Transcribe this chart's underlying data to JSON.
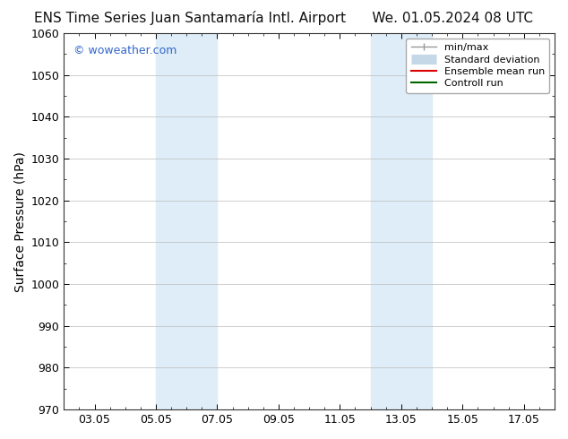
{
  "title_left": "ENS Time Series Juan Santamaría Intl. Airport",
  "title_right": "We. 01.05.2024 08 UTC",
  "ylabel": "Surface Pressure (hPa)",
  "ylim": [
    970,
    1060
  ],
  "yticks": [
    970,
    980,
    990,
    1000,
    1010,
    1020,
    1030,
    1040,
    1050,
    1060
  ],
  "xtick_labels": [
    "03.05",
    "05.05",
    "07.05",
    "09.05",
    "11.05",
    "13.05",
    "15.05",
    "17.05"
  ],
  "xtick_positions": [
    2,
    4,
    6,
    8,
    10,
    12,
    14,
    16
  ],
  "xlim": [
    1,
    17
  ],
  "watermark": "© woweather.com",
  "watermark_color": "#3366cc",
  "bg_color": "#ffffff",
  "plot_bg_color": "#ffffff",
  "shaded_bands": [
    {
      "x_start": 4.0,
      "x_end": 6.0,
      "color": "#deedf8"
    },
    {
      "x_start": 11.0,
      "x_end": 13.0,
      "color": "#deedf8"
    }
  ],
  "grid_color": "#bbbbbb",
  "tick_label_fontsize": 9,
  "axis_label_fontsize": 10,
  "title_fontsize": 11,
  "legend_fontsize": 8
}
